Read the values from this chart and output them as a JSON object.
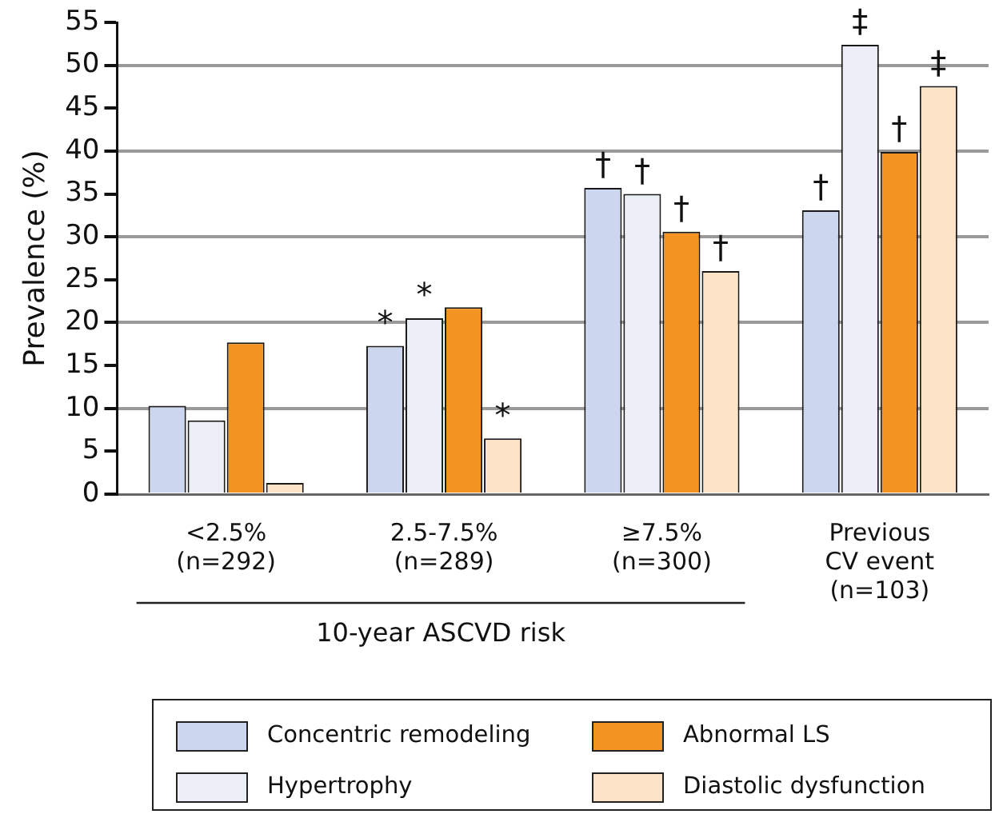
{
  "chart_data": {
    "type": "bar",
    "ylabel": "Prevalence (%)",
    "categories": [
      "<2.5%\n(n=292)",
      "2.5-7.5%\n(n=289)",
      "≥7.5%\n(n=300)",
      "Previous\nCV event\n(n=103)"
    ],
    "series": [
      {
        "name": "Concentric remodeling",
        "color": "#ccd6ee",
        "values": [
          10.3,
          17.3,
          35.7,
          33.1
        ]
      },
      {
        "name": "Hypertrophy",
        "color": "#eceff8",
        "values": [
          8.6,
          20.5,
          35.0,
          52.4
        ]
      },
      {
        "name": "Abnormal LS",
        "color": "#f39422",
        "values": [
          17.7,
          21.8,
          30.6,
          39.9
        ]
      },
      {
        "name": "Diastolic dysfunction",
        "color": "#fde4c8",
        "values": [
          1.3,
          6.5,
          26.0,
          47.6
        ]
      }
    ],
    "ylim": [
      0,
      55
    ],
    "yticks": [
      0,
      5,
      10,
      15,
      20,
      25,
      30,
      35,
      40,
      45,
      50,
      55
    ],
    "grid": "y",
    "legend": "bottom",
    "annotations": [
      {
        "text": "*",
        "x": "2.5-7.5%\n(n=289)",
        "y": 17.3
      },
      {
        "text": "*",
        "x": "2.5-7.5%\n(n=289)",
        "y": 20.5
      },
      {
        "text": "*",
        "x": "2.5-7.5%\n(n=289)",
        "y": 6.5
      },
      {
        "text": "†",
        "x": "≥7.5%\n(n=300)",
        "y": 35.7
      },
      {
        "text": "†",
        "x": "≥7.5%\n(n=300)",
        "y": 35.0
      },
      {
        "text": "†",
        "x": "≥7.5%\n(n=300)",
        "y": 30.6
      },
      {
        "text": "†",
        "x": "≥7.5%\n(n=300)",
        "y": 26.0
      },
      {
        "text": "†",
        "x": "Previous\nCV event\n(n=103)",
        "y": 33.1
      },
      {
        "text": "‡",
        "x": "Previous\nCV event\n(n=103)",
        "y": 52.4
      },
      {
        "text": "†",
        "x": "Previous\nCV event\n(n=103)",
        "y": 39.9
      },
      {
        "text": "‡",
        "x": "Previous\nCV event\n(n=103)",
        "y": 47.6
      },
      "10-year ASCVD risk"
    ]
  }
}
